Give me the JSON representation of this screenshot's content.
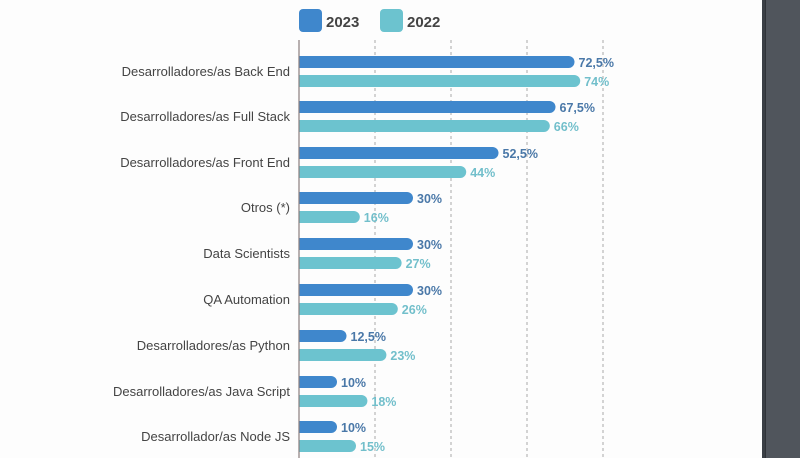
{
  "chart_data": {
    "type": "bar",
    "orientation": "horizontal",
    "title": "",
    "xlabel": "",
    "ylabel": "",
    "xlim": [
      0,
      100
    ],
    "grid": true,
    "legend_position": "top",
    "legend": [
      "2023",
      "2022"
    ],
    "categories": [
      "Desarrolladores/as Back End",
      "Desarrolladores/as Full Stack",
      "Desarrolladores/as Front End",
      "Otros (*)",
      "Data Scientists",
      "QA Automation",
      "Desarrolladores/as Python",
      "Desarrolladores/as Java Script",
      "Desarrollador/as Node JS"
    ],
    "series": [
      {
        "name": "2023",
        "color": "#3f87cc",
        "label_color": "#4a78a8",
        "values": [
          72.5,
          67.5,
          52.5,
          30,
          30,
          30,
          12.5,
          10,
          10
        ],
        "labels": [
          "72,5%",
          "67,5%",
          "52,5%",
          "30%",
          "30%",
          "30%",
          "12,5%",
          "10%",
          "10%"
        ]
      },
      {
        "name": "2022",
        "color": "#6cc3cf",
        "label_color": "#72bfcb",
        "values": [
          74,
          66,
          44,
          16,
          27,
          26,
          23,
          18,
          15
        ],
        "labels": [
          "74%",
          "66%",
          "44%",
          "16%",
          "27%",
          "26%",
          "23%",
          "18%",
          "15%"
        ]
      }
    ]
  }
}
